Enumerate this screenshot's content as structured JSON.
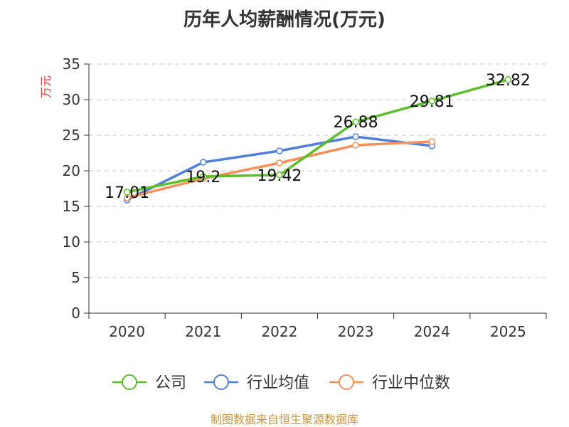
{
  "chart_data": {
    "type": "line",
    "title": "历年人均薪酬情况(万元)",
    "ylabel": "万元",
    "xlabel": "",
    "categories": [
      "2020",
      "2021",
      "2022",
      "2023",
      "2024",
      "2025"
    ],
    "yticks": [
      0,
      5,
      10,
      15,
      20,
      25,
      30,
      35
    ],
    "ylim": [
      0,
      35
    ],
    "grid": true,
    "legend_position": "bottom",
    "series": [
      {
        "name": "公司",
        "color": "#5dc02b",
        "values": [
          17.01,
          19.2,
          19.42,
          26.88,
          29.81,
          32.82
        ],
        "labels": [
          "17.01",
          "19.2",
          "19.42",
          "26.88",
          "29.81",
          "32.82"
        ]
      },
      {
        "name": "行业均值",
        "color": "#4f7fd9",
        "values": [
          15.9,
          21.2,
          22.8,
          24.8,
          23.5,
          null
        ]
      },
      {
        "name": "行业中位数",
        "color": "#f4915a",
        "values": [
          16.2,
          18.9,
          21.1,
          23.6,
          24.1,
          null
        ]
      }
    ],
    "source": "制图数据来自恒生聚源数据库"
  }
}
